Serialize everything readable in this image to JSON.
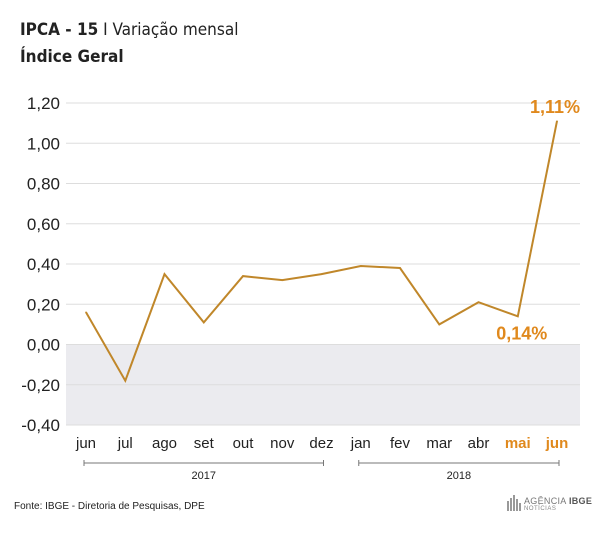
{
  "header": {
    "title_bold": "IPCA - 15",
    "title_rest": "I Variação mensal",
    "subtitle": "Índice Geral"
  },
  "colors": {
    "line": "#c0872a",
    "highlight": "#e0891d",
    "negative_band": "#ebebef",
    "grid": "#dddddd"
  },
  "chart_data": {
    "type": "line",
    "categories": [
      "jun",
      "jul",
      "ago",
      "set",
      "out",
      "nov",
      "dez",
      "jan",
      "fev",
      "mar",
      "abr",
      "mai",
      "jun"
    ],
    "highlighted_categories": [
      11,
      12
    ],
    "series": [
      {
        "values": [
          0.16,
          -0.18,
          0.35,
          0.11,
          0.34,
          0.32,
          0.35,
          0.39,
          0.38,
          0.1,
          0.21,
          0.14,
          1.11
        ]
      }
    ],
    "ylim": [
      -0.4,
      1.2
    ],
    "yticks": [
      "1,20",
      "1,00",
      "0,80",
      "0,60",
      "0,40",
      "0,20",
      "0,00",
      "-0,20",
      "-0,40"
    ],
    "ytick_values": [
      1.2,
      1.0,
      0.8,
      0.6,
      0.4,
      0.2,
      0.0,
      -0.2,
      -0.4
    ],
    "grid": true,
    "year_groups": [
      {
        "label": "2017",
        "from": 0,
        "to": 6
      },
      {
        "label": "2018",
        "from": 7,
        "to": 12
      }
    ],
    "annotations": [
      {
        "index": 11,
        "text": "0,14%"
      },
      {
        "index": 12,
        "text": "1,11%"
      }
    ]
  },
  "footer": {
    "source": "Fonte: IBGE - Diretoria de Pesquisas, DPE",
    "logo_brand_a": "AGÊNCIA",
    "logo_brand_b": "IBGE",
    "logo_sub": "NOTÍCIAS"
  }
}
